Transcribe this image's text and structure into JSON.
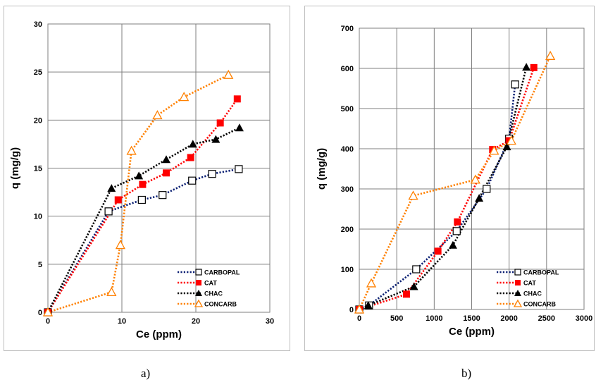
{
  "colors": {
    "carbopal": "#0a1f73",
    "cat": "#ff0000",
    "chac": "#000000",
    "concarb": "#ff8000"
  },
  "captions": {
    "a": "a)",
    "b": "b)"
  },
  "chart_data": [
    {
      "type": "line",
      "panel": "a",
      "title": "",
      "xlabel": "Ce (ppm)",
      "ylabel": "q (mg/g)",
      "xlim": [
        0,
        30
      ],
      "ylim": [
        0,
        30
      ],
      "xticks": [
        0,
        10,
        20,
        30
      ],
      "yticks": [
        0,
        5,
        10,
        15,
        20,
        25,
        30
      ],
      "grid": true,
      "legend_position": "bottom-right",
      "series": [
        {
          "name": "CARBOPAL",
          "color": "#0a1f73",
          "marker": "open-square",
          "x": [
            0,
            8.2,
            12.7,
            15.5,
            19.5,
            22.2,
            25.8
          ],
          "y": [
            0,
            10.5,
            11.7,
            12.2,
            13.7,
            14.4,
            14.9
          ]
        },
        {
          "name": "CAT",
          "color": "#ff0000",
          "marker": "filled-square",
          "x": [
            0,
            9.5,
            12.8,
            16.0,
            19.3,
            23.3,
            25.6
          ],
          "y": [
            0,
            11.7,
            13.3,
            14.5,
            16.1,
            19.7,
            22.2
          ]
        },
        {
          "name": "CHAC",
          "color": "#000000",
          "marker": "filled-triangle",
          "x": [
            0,
            8.6,
            12.3,
            16.0,
            19.6,
            22.7,
            25.9
          ],
          "y": [
            0,
            12.9,
            14.2,
            15.9,
            17.5,
            18.0,
            19.2
          ]
        },
        {
          "name": "CONCARB",
          "color": "#ff8000",
          "marker": "open-triangle",
          "x": [
            0,
            8.6,
            9.8,
            11.3,
            14.8,
            18.4,
            24.4
          ],
          "y": [
            0,
            2.1,
            7.0,
            16.8,
            20.5,
            22.4,
            24.7
          ]
        }
      ]
    },
    {
      "type": "line",
      "panel": "b",
      "title": "",
      "xlabel": "Ce (ppm)",
      "ylabel": "q (mg/g)",
      "xlim": [
        0,
        3000
      ],
      "ylim": [
        0,
        700
      ],
      "xticks": [
        0,
        500,
        1000,
        1500,
        2000,
        2500,
        3000
      ],
      "yticks": [
        0,
        100,
        200,
        300,
        400,
        500,
        600,
        700
      ],
      "grid": true,
      "legend_position": "bottom-right",
      "series": [
        {
          "name": "CARBOPAL",
          "color": "#0a1f73",
          "marker": "open-square",
          "x": [
            0,
            130,
            760,
            1300,
            1700,
            2000,
            2080
          ],
          "y": [
            0,
            10,
            100,
            195,
            300,
            425,
            560
          ]
        },
        {
          "name": "CAT",
          "color": "#ff0000",
          "marker": "filled-square",
          "x": [
            0,
            630,
            1050,
            1310,
            1780,
            2000,
            2330
          ],
          "y": [
            0,
            38,
            145,
            218,
            398,
            420,
            602
          ]
        },
        {
          "name": "CHAC",
          "color": "#000000",
          "marker": "filled-triangle",
          "x": [
            0,
            120,
            730,
            1250,
            1600,
            1970,
            2230
          ],
          "y": [
            0,
            10,
            57,
            160,
            277,
            405,
            603
          ]
        },
        {
          "name": "CONCARB",
          "color": "#ff8000",
          "marker": "open-triangle",
          "x": [
            0,
            160,
            720,
            1550,
            1800,
            2030,
            2550
          ],
          "y": [
            0,
            65,
            283,
            323,
            395,
            420,
            631
          ]
        }
      ]
    }
  ]
}
